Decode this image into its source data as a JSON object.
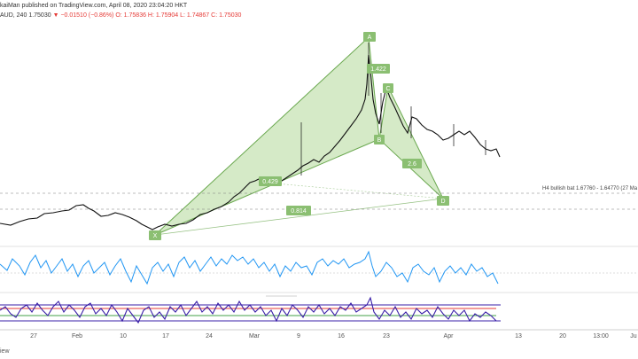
{
  "header": {
    "line1": "kaiMan published on TradingView.com, April 08, 2020 23:04:20 HKT",
    "symbol": "AUD, 240",
    "price": "1.75030",
    "change": "▼ −0.01510 (−0.86%)",
    "ohlc": "O: 1.75836 H: 1.75904 L: 1.74867 C: 1.75030"
  },
  "pattern": {
    "points": [
      "X",
      "A",
      "B",
      "C",
      "D"
    ],
    "ratios": [
      "1.422",
      "0.814",
      "2.6",
      "0.429"
    ],
    "annotation": "H4 bullish bat 1.67760 - 1.64770 (27 Ma"
  },
  "colors": {
    "pattern_fill": "#c7e3b4",
    "pattern_stroke": "#6aa84f",
    "label_fill": "#8bbf72",
    "rsi": "#2196f3",
    "osc_main": "#3a1fa8",
    "osc_red": "#e53935",
    "osc_green": "#43a047"
  },
  "xaxis": {
    "labels": [
      "27",
      "Feb",
      "10",
      "17",
      "24",
      "Mar",
      "9",
      "16",
      "23",
      "Apr",
      "13",
      "20",
      "13:00",
      "Ju"
    ]
  },
  "footer": {
    "brand": "iew"
  }
}
